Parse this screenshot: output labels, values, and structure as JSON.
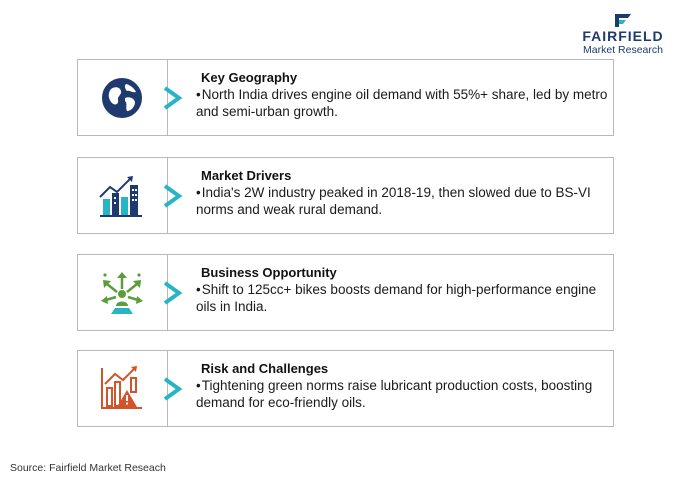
{
  "logo": {
    "name": "FAIRFIELD",
    "subtitle": "Market Research",
    "color": "#1f3a6e"
  },
  "arrow_color": "#27b5c6",
  "cards": [
    {
      "icon": "globe-icon",
      "icon_color": "#1f3a6e",
      "title": "Key Geography",
      "bullet": "•",
      "text": "North India drives engine oil demand with 55%+ share, led by metro and semi-urban growth."
    },
    {
      "icon": "city-growth-chart-icon",
      "icon_color": "#27b5c6",
      "title": "Market Drivers",
      "bullet": "•",
      "text": "India's 2W industry peaked in 2018-19, then slowed due to BS-VI norms and weak rural demand."
    },
    {
      "icon": "opportunity-arrows-icon",
      "icon_color": "#5a9e3a",
      "title": "Business Opportunity",
      "bullet": "•",
      "text": "Shift to 125cc+ bikes boosts demand for high-performance engine oils in India."
    },
    {
      "icon": "risk-chart-warning-icon",
      "icon_color": "#d2552a",
      "title": "Risk and Challenges",
      "bullet": "•",
      "text": "Tightening green norms raise lubricant production costs, boosting demand for eco-friendly oils."
    }
  ],
  "source": "Source: Fairfield Market Reseach"
}
